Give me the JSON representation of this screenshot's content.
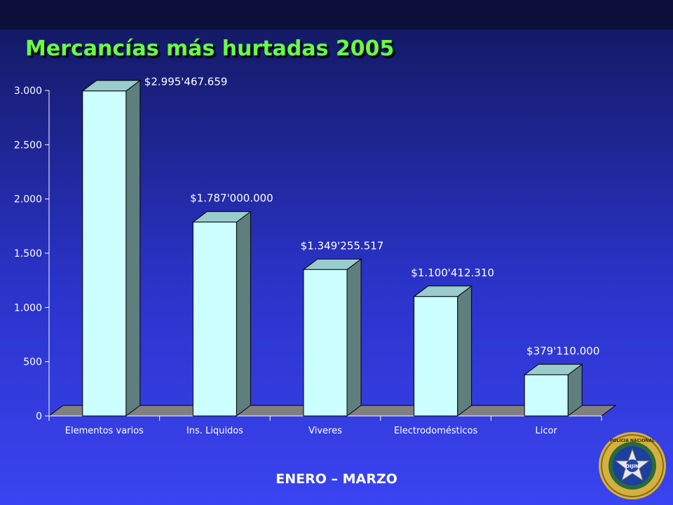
{
  "page": {
    "title": "Mercancías más hurtadas 2005",
    "footer": "ENERO – MARZO"
  },
  "seal": {
    "icon": "police-seal-icon",
    "top_text": "POLICIA NACIONAL",
    "center_text": "DIJIN"
  },
  "colors": {
    "bar_front": "#ccffff",
    "bar_top": "#99cccc",
    "bar_side": "#5f7f7f",
    "floor": "#808080",
    "axis_text": "#ffffff",
    "label_text": "#ffffff",
    "title": "#66ff44"
  },
  "chart_data": {
    "type": "bar",
    "categories": [
      "Elementos varios",
      "Ins. Liquidos",
      "Viveres",
      "Electrodomésticos",
      "Licor"
    ],
    "values": [
      2995.467659,
      1787.0,
      1349.255517,
      1100.41231,
      379.11
    ],
    "data_labels": [
      "$2.995'467.659",
      "$1.787'000.000",
      "$1.349'255.517",
      "$1.100'412.310",
      "$379'110.000"
    ],
    "yticks": [
      0,
      500,
      1000,
      1500,
      2000,
      2500,
      3000
    ],
    "ytick_labels": [
      "0",
      "500",
      "1.000",
      "1.500",
      "2.000",
      "2.500",
      "3.000"
    ],
    "ylim": [
      0,
      3000
    ],
    "xlabel": "",
    "ylabel": "",
    "grid": false,
    "legend": "none",
    "three_d": true
  }
}
